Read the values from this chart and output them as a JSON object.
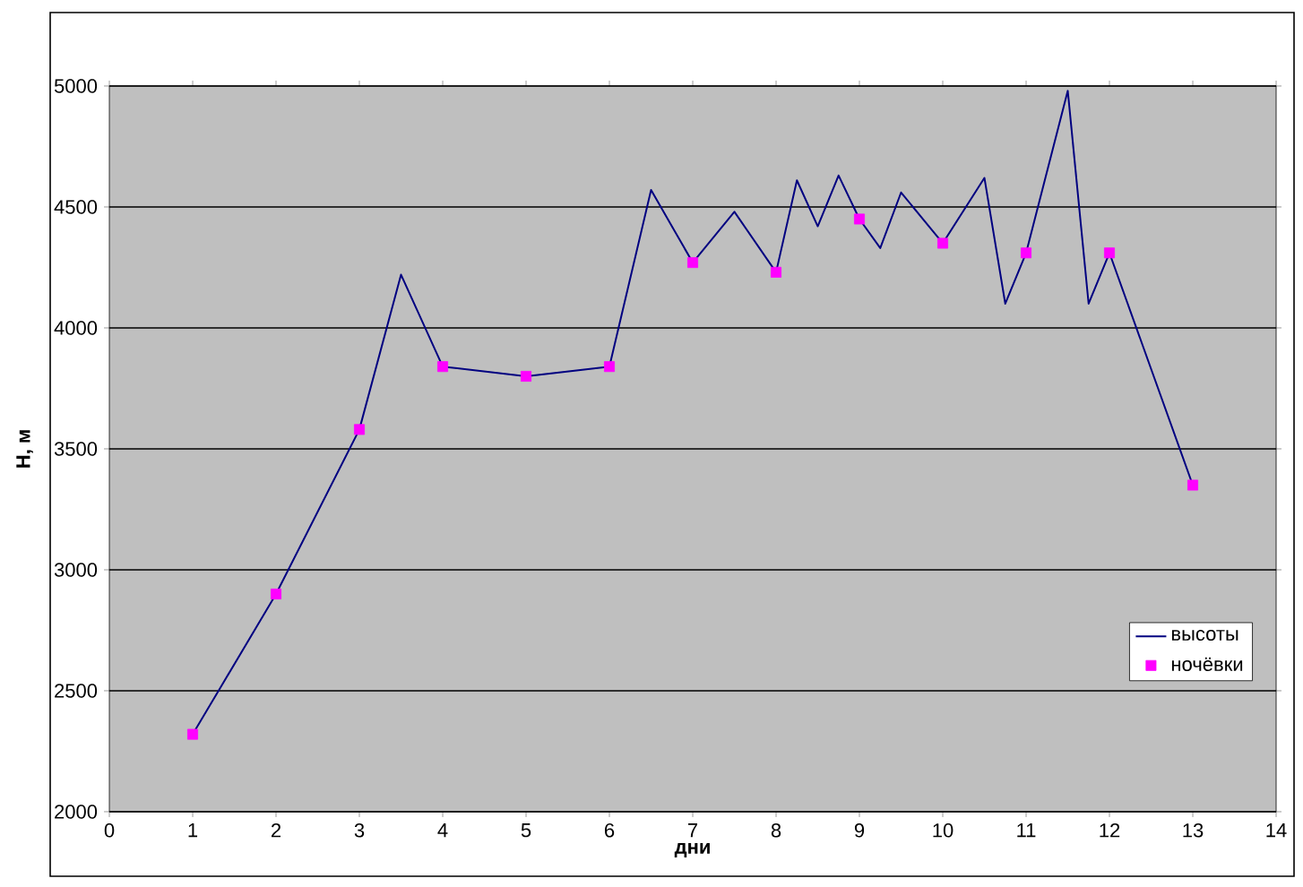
{
  "chart_data": {
    "type": "line",
    "xlabel": "дни",
    "ylabel": "Н, м",
    "xlim": [
      0,
      14
    ],
    "xticks": [
      0,
      1,
      2,
      3,
      4,
      5,
      6,
      7,
      8,
      9,
      10,
      11,
      12,
      13,
      14
    ],
    "ylim": [
      2000,
      5000
    ],
    "yticks": [
      2000,
      2500,
      3000,
      3500,
      4000,
      4500,
      5000
    ],
    "grid": "y",
    "legend": "bottom right",
    "line_style": "solid",
    "series": [
      {
        "name": "высоты",
        "type": "line",
        "color": "#000080",
        "x": [
          1,
          2,
          3,
          3.5,
          4,
          5,
          6,
          6.5,
          7,
          7.5,
          8,
          8.25,
          8.5,
          8.75,
          9,
          9.25,
          9.5,
          10,
          10.5,
          10.75,
          11,
          11.5,
          11.75,
          12,
          13
        ],
        "values": [
          2320,
          2900,
          3580,
          4220,
          3840,
          3800,
          3840,
          4570,
          4270,
          4480,
          4230,
          4610,
          4420,
          4630,
          4450,
          4330,
          4560,
          4350,
          4620,
          4100,
          4310,
          4980,
          4100,
          4310,
          3350
        ]
      },
      {
        "name": "ночёвки",
        "type": "scatter",
        "marker": "square",
        "color": "#ff00ff",
        "x": [
          1,
          2,
          3,
          4,
          5,
          6,
          7,
          8,
          9,
          10,
          11,
          12,
          13
        ],
        "values": [
          2320,
          2900,
          3580,
          3840,
          3800,
          3840,
          4270,
          4230,
          4450,
          4350,
          4310,
          4310,
          3350
        ]
      }
    ]
  }
}
